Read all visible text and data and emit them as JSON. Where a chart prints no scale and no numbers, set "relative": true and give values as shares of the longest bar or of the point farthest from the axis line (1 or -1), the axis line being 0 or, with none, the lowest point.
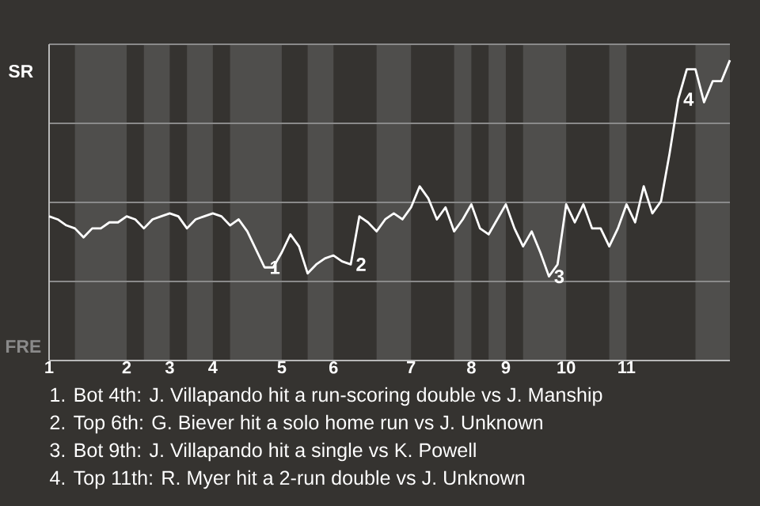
{
  "chart_data": {
    "type": "line",
    "relative": true,
    "categories": [
      "1",
      null,
      null,
      null,
      null,
      null,
      null,
      null,
      null,
      "2",
      null,
      null,
      null,
      null,
      "3",
      null,
      null,
      null,
      null,
      "4",
      null,
      null,
      null,
      null,
      null,
      null,
      null,
      "5",
      null,
      null,
      null,
      null,
      null,
      "6",
      null,
      null,
      null,
      null,
      null,
      null,
      null,
      null,
      "7",
      null,
      null,
      null,
      null,
      null,
      null,
      "8",
      null,
      null,
      null,
      "9",
      null,
      null,
      null,
      null,
      null,
      null,
      "10",
      null,
      null,
      null,
      null,
      null,
      null,
      "11",
      null,
      null,
      null,
      null,
      null,
      null,
      null,
      null,
      null,
      null,
      null,
      null
    ],
    "series": [
      {
        "color": "#ffffff",
        "values": [
          0.48,
          0.47,
          0.45,
          0.44,
          0.41,
          0.44,
          0.44,
          0.46,
          0.46,
          0.48,
          0.47,
          0.44,
          0.47,
          0.48,
          0.49,
          0.48,
          0.44,
          0.47,
          0.48,
          0.49,
          0.48,
          0.45,
          0.47,
          0.43,
          0.37,
          0.31,
          0.31,
          0.36,
          0.42,
          0.38,
          0.29,
          0.32,
          0.34,
          0.35,
          0.33,
          0.32,
          0.48,
          0.46,
          0.43,
          0.47,
          0.49,
          0.47,
          0.51,
          0.58,
          0.54,
          0.47,
          0.51,
          0.43,
          0.47,
          0.52,
          0.44,
          0.42,
          0.47,
          0.52,
          0.44,
          0.38,
          0.43,
          0.36,
          0.28,
          0.32,
          0.52,
          0.46,
          0.52,
          0.44,
          0.44,
          0.38,
          0.44,
          0.52,
          0.46,
          0.58,
          0.49,
          0.53,
          0.69,
          0.87,
          0.97,
          0.97,
          0.86,
          0.93,
          0.93,
          1
        ]
      }
    ],
    "line_style": "solid",
    "annotations": [
      "1",
      "2",
      "3",
      "4",
      "1. Bot 4th: J. Villapando hit a run-scoring double vs J. Manship",
      "2. Top 6th: G. Biever hit a solo home run vs J. Unknown",
      "3. Bot 9th: J. Villapando hit a single vs K. Powell",
      "4. Top 11th: R. Myer hit a 2-run double vs J. Unknown",
      "SR",
      "FRE"
    ]
  }
}
